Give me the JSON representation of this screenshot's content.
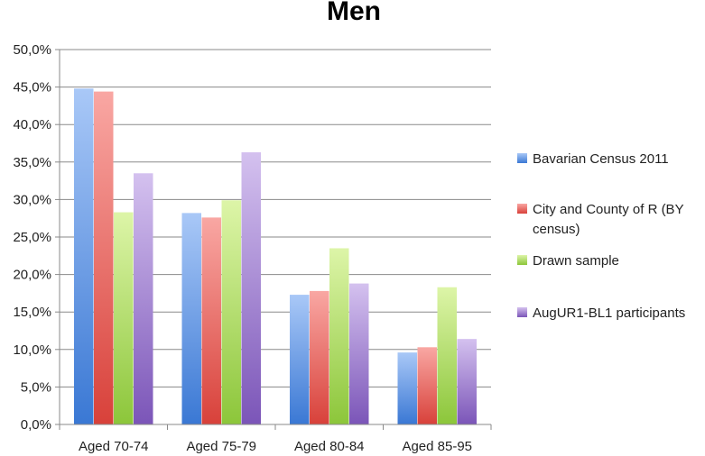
{
  "chart_data": {
    "type": "bar",
    "title": "Men",
    "xlabel": "",
    "ylabel": "",
    "categories": [
      "Aged 70-74",
      "Aged 75-79",
      "Aged 80-84",
      "Aged 85-95"
    ],
    "ylim": [
      0,
      50
    ],
    "ytick_step": 5,
    "ytick_labels": [
      "0,0%",
      "5,0%",
      "10,0%",
      "15,0%",
      "20,0%",
      "25,0%",
      "30,0%",
      "35,0%",
      "40,0%",
      "45,0%",
      "50,0%"
    ],
    "grid": true,
    "legend_position": "right",
    "series": [
      {
        "name": "Bavarian Census 2011",
        "legend_lines": [
          "Bavarian Census 2011"
        ],
        "values": [
          44.8,
          28.2,
          17.3,
          9.6
        ],
        "color_top": "#a9c8f7",
        "color_bottom": "#3a78d4"
      },
      {
        "name": "City and County of R (BY census)",
        "legend_lines": [
          "City and County of R (BY",
          "census)"
        ],
        "values": [
          44.4,
          27.6,
          17.8,
          10.3
        ],
        "color_top": "#f9a7a3",
        "color_bottom": "#d8413a"
      },
      {
        "name": "Drawn sample",
        "legend_lines": [
          "Drawn sample"
        ],
        "values": [
          28.3,
          29.9,
          23.5,
          18.3
        ],
        "color_top": "#ddf5a8",
        "color_bottom": "#8cc63a"
      },
      {
        "name": "AugUR1-BL1 participants",
        "legend_lines": [
          "AugUR1-BL1 participants"
        ],
        "values": [
          33.5,
          36.3,
          18.8,
          11.4
        ],
        "color_top": "#d4c1ef",
        "color_bottom": "#7b55b8"
      }
    ]
  }
}
